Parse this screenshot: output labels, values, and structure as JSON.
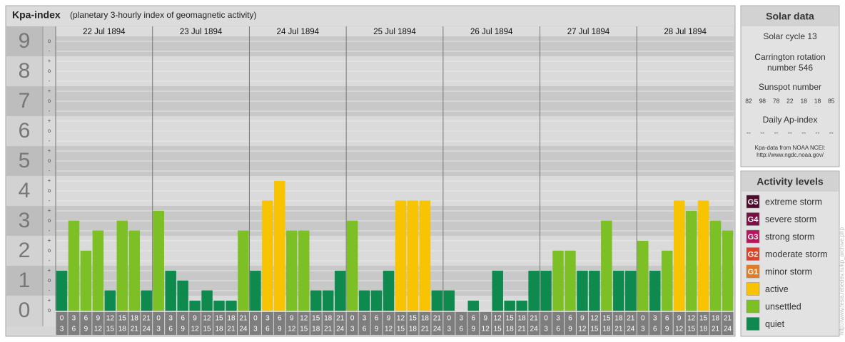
{
  "title": "Kpa-index",
  "subtitle": "(planetary 3-hourly index of geomagnetic activity)",
  "chart_data": {
    "type": "bar",
    "days": [
      "22 Jul 1894",
      "23 Jul 1894",
      "24 Jul 1894",
      "25 Jul 1894",
      "26 Jul 1894",
      "27 Jul 1894",
      "28 Jul 1894"
    ],
    "hour_ranges": [
      [
        0,
        3
      ],
      [
        3,
        6
      ],
      [
        6,
        9
      ],
      [
        9,
        12
      ],
      [
        12,
        15
      ],
      [
        15,
        18
      ],
      [
        18,
        21
      ],
      [
        21,
        24
      ]
    ],
    "values": [
      1.33,
      3,
      2,
      2.67,
      0.67,
      3,
      2.67,
      0.67,
      3.33,
      1.33,
      1,
      0.33,
      0.67,
      0.33,
      0.33,
      2.67,
      1.33,
      3.67,
      4.33,
      2.67,
      2.67,
      0.67,
      0.67,
      1.33,
      3,
      0.67,
      0.67,
      1.33,
      3.67,
      3.67,
      3.67,
      0.67,
      0.67,
      0,
      0.33,
      0,
      1.33,
      0.33,
      0.33,
      1.33,
      1.33,
      2,
      2,
      1.33,
      1.33,
      3,
      1.33,
      1.33,
      2.33,
      1.33,
      2,
      3.67,
      3.33,
      3.67,
      3,
      2.67
    ],
    "colors": [
      "#0e8a4e",
      "#7cc025",
      "#7cc025",
      "#7cc025",
      "#0e8a4e",
      "#7cc025",
      "#7cc025",
      "#0e8a4e",
      "#7cc025",
      "#0e8a4e",
      "#0e8a4e",
      "#0e8a4e",
      "#0e8a4e",
      "#0e8a4e",
      "#0e8a4e",
      "#7cc025",
      "#0e8a4e",
      "#f8c300",
      "#f8c300",
      "#7cc025",
      "#7cc025",
      "#0e8a4e",
      "#0e8a4e",
      "#0e8a4e",
      "#7cc025",
      "#0e8a4e",
      "#0e8a4e",
      "#0e8a4e",
      "#f8c300",
      "#f8c300",
      "#f8c300",
      "#0e8a4e",
      "#0e8a4e",
      "#0e8a4e",
      "#0e8a4e",
      "#0e8a4e",
      "#0e8a4e",
      "#0e8a4e",
      "#0e8a4e",
      "#0e8a4e",
      "#0e8a4e",
      "#7cc025",
      "#7cc025",
      "#0e8a4e",
      "#0e8a4e",
      "#7cc025",
      "#0e8a4e",
      "#0e8a4e",
      "#7cc025",
      "#0e8a4e",
      "#7cc025",
      "#f8c300",
      "#7cc025",
      "#f8c300",
      "#7cc025",
      "#7cc025"
    ],
    "ylim": [
      0,
      9.5
    ],
    "yticks": [
      0,
      1,
      2,
      3,
      4,
      5,
      6,
      7,
      8,
      9
    ],
    "minor_labels": [
      "o",
      "+",
      "-"
    ]
  },
  "solar_data": {
    "title": "Solar data",
    "cycle": "Solar cycle 13",
    "rotation": [
      "Carrington rotation",
      "number 546"
    ],
    "sunspot_title": "Sunspot number",
    "sunspot_numbers": [
      82,
      98,
      78,
      22,
      18,
      18,
      85
    ],
    "ap_title": "Daily Ap-index",
    "ap_values": [
      "--",
      "--",
      "--",
      "--",
      "--",
      "--",
      "--"
    ],
    "source": [
      "Kpa-data from NOAA NCEI:",
      "http://www.ngdc.noaa.gov/"
    ]
  },
  "activity_levels": {
    "title": "Activity levels",
    "items": [
      {
        "badge": "G5",
        "label": "extreme storm",
        "color": "#4e0a2c"
      },
      {
        "badge": "G4",
        "label": "severe storm",
        "color": "#7a1044"
      },
      {
        "badge": "G3",
        "label": "strong storm",
        "color": "#b3175c"
      },
      {
        "badge": "G2",
        "label": "moderate storm",
        "color": "#d8442a"
      },
      {
        "badge": "G1",
        "label": "minor storm",
        "color": "#e57c22"
      },
      {
        "label": "active",
        "color": "#f8c300"
      },
      {
        "label": "unsettled",
        "color": "#7cc025"
      },
      {
        "label": "quiet",
        "color": "#0e8a4e"
      }
    ]
  },
  "watermark": "http://www.tesis.lebedev.ru/kp_archive.php"
}
